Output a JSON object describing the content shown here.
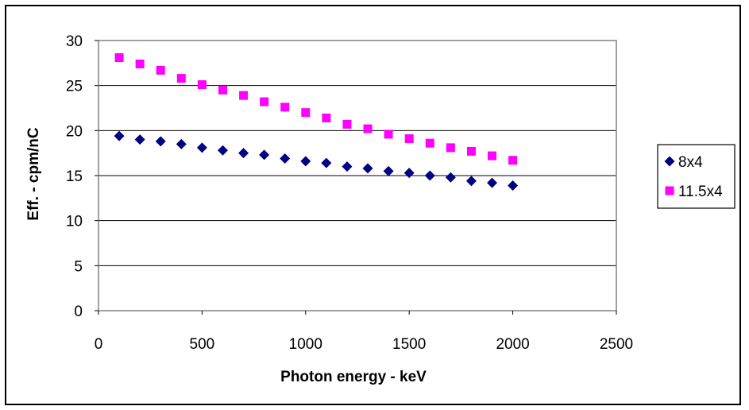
{
  "chart_data": {
    "type": "scatter",
    "title": "",
    "xlabel": "Photon energy - keV",
    "ylabel": "Eff. - cpm/nC",
    "xlim": [
      0,
      2500
    ],
    "ylim": [
      0,
      30
    ],
    "x_ticks": [
      "0",
      "500",
      "1000",
      "1500",
      "2000",
      "2500"
    ],
    "y_ticks": [
      "0",
      "5",
      "10",
      "15",
      "20",
      "25",
      "30"
    ],
    "grid": "horizontal",
    "legend_position": "right",
    "series": [
      {
        "name": "8x4",
        "marker": "diamond",
        "color": "#000080",
        "x": [
          100,
          200,
          300,
          400,
          500,
          600,
          700,
          800,
          900,
          1000,
          1100,
          1200,
          1300,
          1400,
          1500,
          1600,
          1700,
          1800,
          1900,
          2000
        ],
        "y": [
          19.4,
          19.0,
          18.8,
          18.5,
          18.1,
          17.8,
          17.5,
          17.3,
          16.9,
          16.6,
          16.4,
          16.0,
          15.8,
          15.5,
          15.3,
          15.0,
          14.8,
          14.4,
          14.2,
          13.9
        ]
      },
      {
        "name": "11.5x4",
        "marker": "square",
        "color": "#FF00FF",
        "x": [
          100,
          200,
          300,
          400,
          500,
          600,
          700,
          800,
          900,
          1000,
          1100,
          1200,
          1300,
          1400,
          1500,
          1600,
          1700,
          1800,
          1900,
          2000
        ],
        "y": [
          28.1,
          27.4,
          26.7,
          25.8,
          25.1,
          24.5,
          23.9,
          23.2,
          22.6,
          22.0,
          21.4,
          20.7,
          20.2,
          19.6,
          19.1,
          18.6,
          18.1,
          17.7,
          17.2,
          16.7
        ]
      }
    ]
  }
}
